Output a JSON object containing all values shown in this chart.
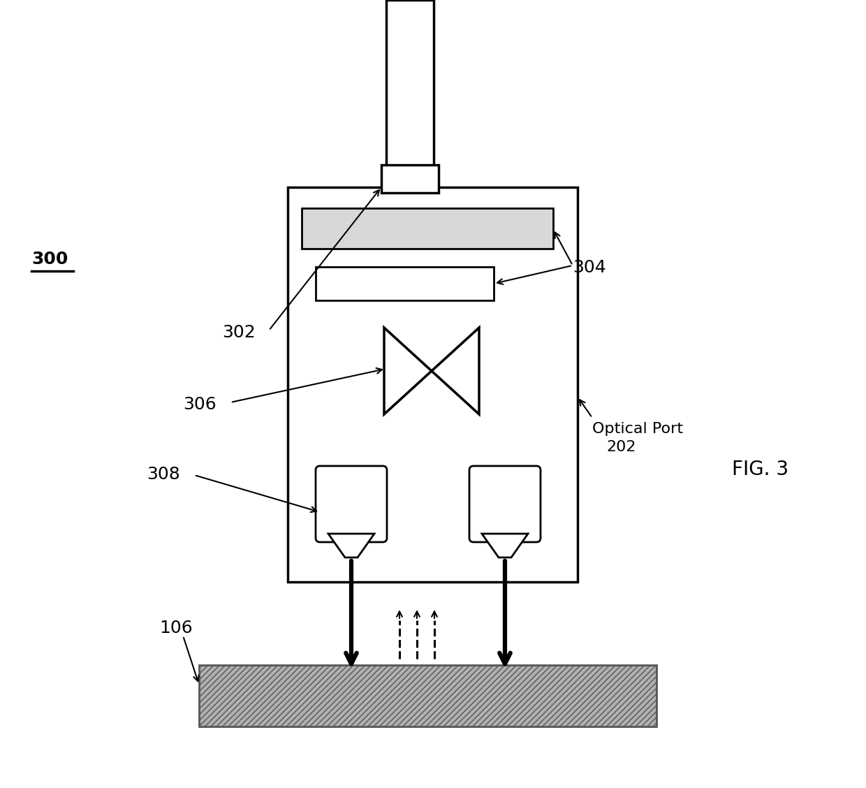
{
  "fig_label": "FIG. 3",
  "device_label": "300",
  "label_302": "302",
  "label_304": "304",
  "label_306": "306",
  "label_308": "308",
  "label_202": "202",
  "label_optical": "Optical Port",
  "label_106": "106",
  "bg_color": "#ffffff",
  "line_color": "#000000",
  "text_fontsize": 18,
  "small_fontsize": 16
}
